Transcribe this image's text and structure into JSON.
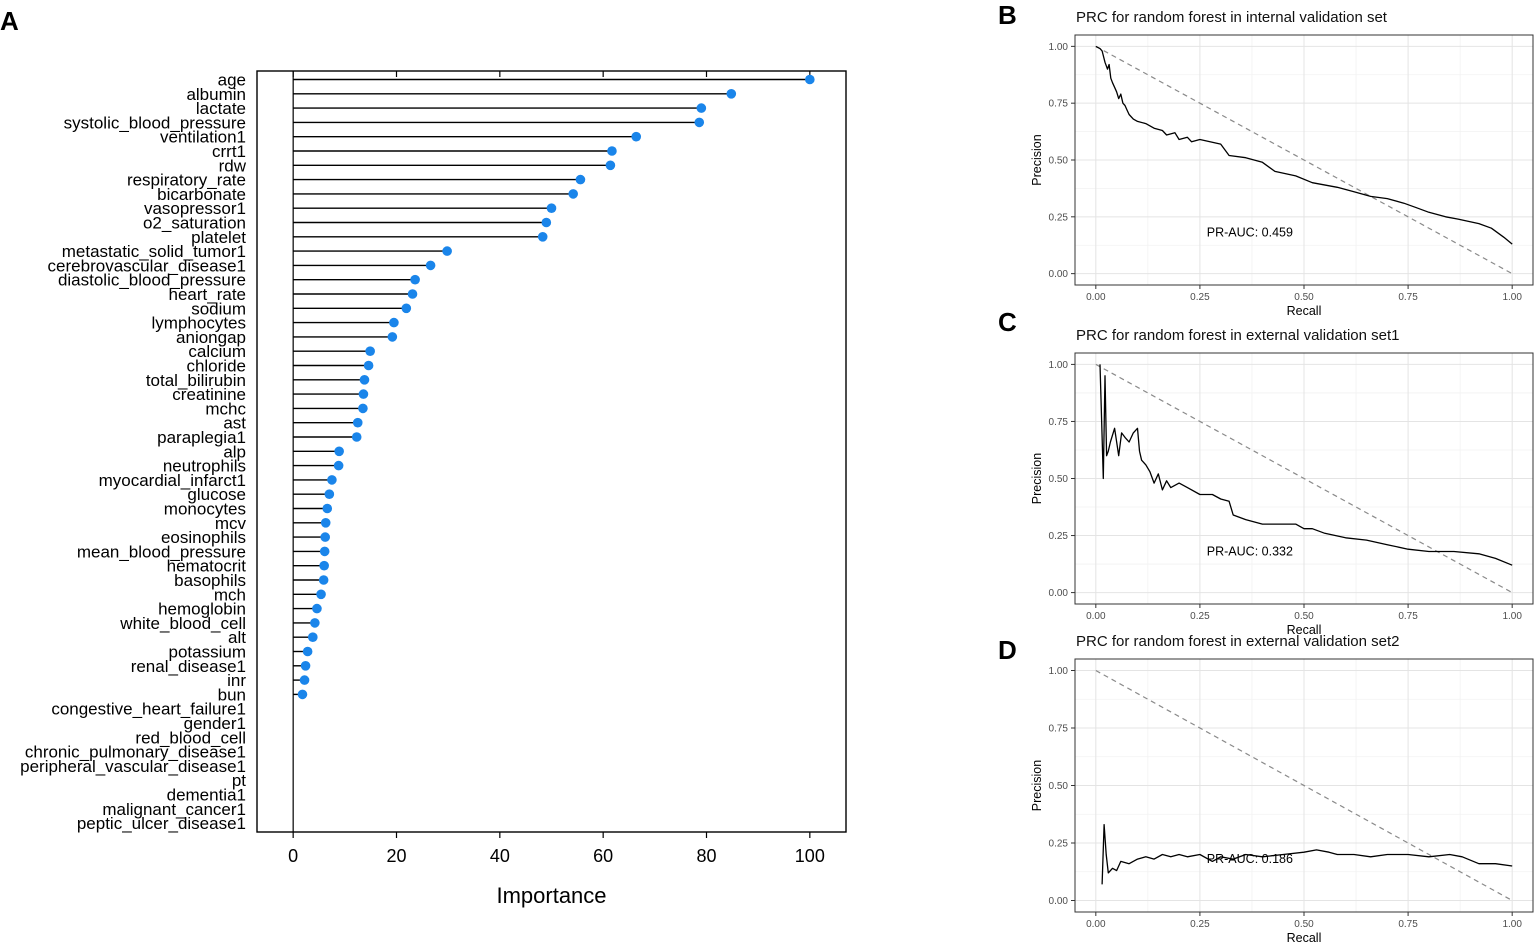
{
  "chart_data": [
    {
      "panel": "A",
      "type": "lollipop",
      "xlabel": "Importance",
      "xlim": [
        -7,
        107
      ],
      "xticks": [
        0,
        20,
        40,
        60,
        80,
        100
      ],
      "color": "#1a85ea",
      "categories": [
        "age",
        "albumin",
        "lactate",
        "systolic_blood_pressure",
        "ventilation1",
        "crrt1",
        "rdw",
        "respiratory_rate",
        "bicarbonate",
        "vasopressor1",
        "o2_saturation",
        "platelet",
        "metastatic_solid_tumor1",
        "cerebrovascular_disease1",
        "diastolic_blood_pressure",
        "heart_rate",
        "sodium",
        "lymphocytes",
        "aniongap",
        "calcium",
        "chloride",
        "total_bilirubin",
        "creatinine",
        "mchc",
        "ast",
        "paraplegia1",
        "alp",
        "neutrophils",
        "myocardial_infarct1",
        "glucose",
        "monocytes",
        "mcv",
        "eosinophils",
        "mean_blood_pressure",
        "hematocrit",
        "basophils",
        "mch",
        "hemoglobin",
        "white_blood_cell",
        "alt",
        "potassium",
        "renal_disease1",
        "inr",
        "bun",
        "congestive_heart_failure1",
        "gender1",
        "red_blood_cell",
        "chronic_pulmonary_disease1",
        "peripheral_vascular_disease1",
        "pt",
        "dementia1",
        "malignant_cancer1",
        "peptic_ulcer_disease1"
      ],
      "values": [
        100,
        84.8,
        79,
        78.6,
        66.4,
        61.7,
        61.4,
        55.6,
        54.2,
        50,
        49,
        48.3,
        29.8,
        26.6,
        23.6,
        23.1,
        21.9,
        19.5,
        19.2,
        14.9,
        14.6,
        13.8,
        13.6,
        13.5,
        12.5,
        12.3,
        8.9,
        8.8,
        7.5,
        7,
        6.6,
        6.3,
        6.2,
        6.1,
        6,
        5.9,
        5.4,
        4.6,
        4.2,
        3.8,
        2.8,
        2.4,
        2.2,
        1.8,
        null,
        null,
        null,
        null,
        null,
        null,
        null,
        null,
        null
      ]
    },
    {
      "panel": "B",
      "type": "line",
      "title": "PRC for random forest in internal validation set",
      "xlabel": "Recall",
      "ylabel": "Precision",
      "xlim": [
        -0.05,
        1.05
      ],
      "ylim": [
        -0.05,
        1.05
      ],
      "xticks": [
        "0.00",
        "0.25",
        "0.50",
        "0.75",
        "1.00"
      ],
      "yticks": [
        "0.00",
        "0.25",
        "0.50",
        "0.75",
        "1.00"
      ],
      "annotation": {
        "text": "PR-AUC: 0.459",
        "x": 0.37,
        "y": 0.18
      },
      "reference": {
        "x": [
          0,
          1
        ],
        "y": [
          1,
          0
        ],
        "style": "dashed"
      },
      "x": [
        0,
        0.01,
        0.015,
        0.022,
        0.028,
        0.032,
        0.036,
        0.04,
        0.045,
        0.05,
        0.055,
        0.06,
        0.065,
        0.07,
        0.075,
        0.08,
        0.09,
        0.1,
        0.12,
        0.14,
        0.16,
        0.17,
        0.19,
        0.2,
        0.22,
        0.23,
        0.25,
        0.3,
        0.32,
        0.36,
        0.4,
        0.43,
        0.48,
        0.52,
        0.58,
        0.62,
        0.66,
        0.7,
        0.74,
        0.77,
        0.8,
        0.84,
        0.87,
        0.92,
        0.95,
        0.98,
        1.0
      ],
      "y": [
        1.0,
        0.99,
        0.98,
        0.93,
        0.9,
        0.92,
        0.86,
        0.84,
        0.82,
        0.8,
        0.77,
        0.79,
        0.75,
        0.74,
        0.72,
        0.7,
        0.68,
        0.67,
        0.66,
        0.64,
        0.63,
        0.61,
        0.62,
        0.59,
        0.6,
        0.58,
        0.59,
        0.57,
        0.52,
        0.51,
        0.49,
        0.45,
        0.43,
        0.4,
        0.38,
        0.36,
        0.34,
        0.33,
        0.31,
        0.29,
        0.27,
        0.25,
        0.24,
        0.22,
        0.2,
        0.16,
        0.13
      ]
    },
    {
      "panel": "C",
      "type": "line",
      "title": "PRC for random forest in external validation set1",
      "xlabel": "Recall",
      "ylabel": "Precision",
      "xlim": [
        -0.05,
        1.05
      ],
      "ylim": [
        -0.05,
        1.05
      ],
      "xticks": [
        "0.00",
        "0.25",
        "0.50",
        "0.75",
        "1.00"
      ],
      "yticks": [
        "0.00",
        "0.25",
        "0.50",
        "0.75",
        "1.00"
      ],
      "annotation": {
        "text": "PR-AUC: 0.332",
        "x": 0.37,
        "y": 0.18
      },
      "reference": {
        "x": [
          0,
          1
        ],
        "y": [
          1,
          0
        ],
        "style": "dashed"
      },
      "x": [
        0.01,
        0.018,
        0.022,
        0.026,
        0.03,
        0.035,
        0.045,
        0.055,
        0.062,
        0.07,
        0.08,
        0.09,
        0.1,
        0.105,
        0.11,
        0.12,
        0.13,
        0.14,
        0.15,
        0.16,
        0.17,
        0.18,
        0.2,
        0.22,
        0.25,
        0.28,
        0.3,
        0.32,
        0.33,
        0.36,
        0.4,
        0.44,
        0.48,
        0.5,
        0.52,
        0.55,
        0.6,
        0.65,
        0.7,
        0.75,
        0.8,
        0.86,
        0.92,
        0.96,
        1.0
      ],
      "y": [
        1.0,
        0.5,
        0.95,
        0.6,
        0.62,
        0.66,
        0.72,
        0.6,
        0.7,
        0.68,
        0.66,
        0.7,
        0.72,
        0.62,
        0.58,
        0.56,
        0.53,
        0.48,
        0.52,
        0.45,
        0.49,
        0.46,
        0.48,
        0.46,
        0.43,
        0.43,
        0.41,
        0.4,
        0.34,
        0.32,
        0.3,
        0.3,
        0.3,
        0.28,
        0.28,
        0.26,
        0.24,
        0.23,
        0.21,
        0.19,
        0.18,
        0.18,
        0.17,
        0.15,
        0.12
      ]
    },
    {
      "panel": "D",
      "type": "line",
      "title": "PRC for random forest in external validation set2",
      "xlabel": "Recall",
      "ylabel": "Precision",
      "xlim": [
        -0.05,
        1.05
      ],
      "ylim": [
        -0.05,
        1.05
      ],
      "xticks": [
        "0.00",
        "0.25",
        "0.50",
        "0.75",
        "1.00"
      ],
      "yticks": [
        "0.00",
        "0.25",
        "0.50",
        "0.75",
        "1.00"
      ],
      "annotation": {
        "text": "PR-AUC: 0.186",
        "x": 0.37,
        "y": 0.18
      },
      "reference": {
        "x": [
          0,
          1
        ],
        "y": [
          1,
          0
        ],
        "style": "dashed"
      },
      "x": [
        0.015,
        0.02,
        0.025,
        0.03,
        0.04,
        0.05,
        0.06,
        0.08,
        0.1,
        0.12,
        0.14,
        0.16,
        0.18,
        0.2,
        0.22,
        0.25,
        0.28,
        0.3,
        0.33,
        0.36,
        0.4,
        0.45,
        0.5,
        0.53,
        0.56,
        0.58,
        0.62,
        0.66,
        0.7,
        0.75,
        0.8,
        0.85,
        0.88,
        0.92,
        0.96,
        1.0
      ],
      "y": [
        0.07,
        0.33,
        0.2,
        0.12,
        0.14,
        0.13,
        0.17,
        0.16,
        0.18,
        0.19,
        0.18,
        0.2,
        0.19,
        0.2,
        0.19,
        0.2,
        0.17,
        0.19,
        0.18,
        0.2,
        0.19,
        0.2,
        0.21,
        0.22,
        0.21,
        0.2,
        0.2,
        0.19,
        0.2,
        0.2,
        0.19,
        0.2,
        0.19,
        0.16,
        0.16,
        0.15
      ]
    }
  ],
  "labels": {
    "panel_a": "A",
    "panel_b": "B",
    "panel_c": "C",
    "panel_d": "D"
  }
}
